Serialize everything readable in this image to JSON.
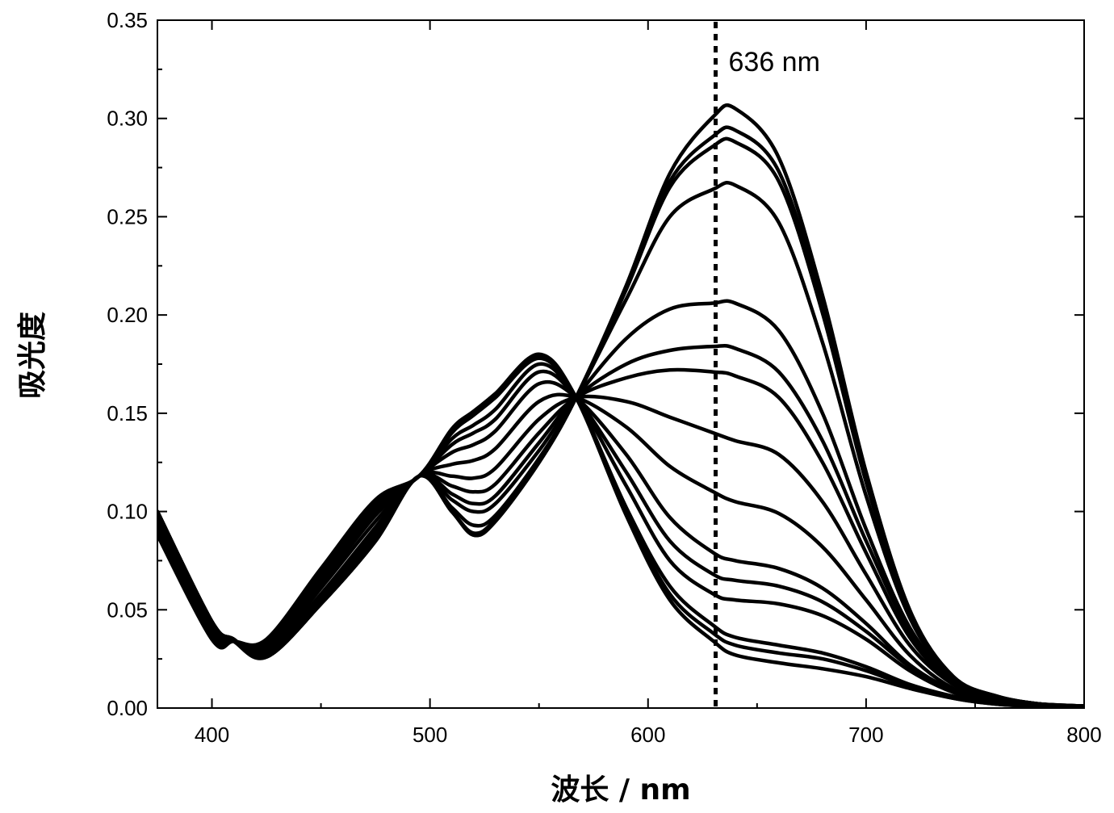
{
  "chart_data": {
    "type": "line",
    "title": "",
    "xlabel": "波长 / nm",
    "ylabel": "吸光度",
    "xlim": [
      375,
      800
    ],
    "ylim": [
      0,
      0.35
    ],
    "x_ticks": [
      400,
      500,
      600,
      700,
      800
    ],
    "x_tick_labels": [
      "400",
      "500",
      "600",
      "700",
      "800"
    ],
    "y_ticks": [
      0,
      0.05,
      0.1,
      0.15,
      0.2,
      0.25,
      0.3,
      0.35
    ],
    "y_tick_labels": [
      "0.00",
      "0.05",
      "0.10",
      "0.15",
      "0.20",
      "0.25",
      "0.30",
      "0.35"
    ],
    "grid": false,
    "legend": "none",
    "line_color": "#000000",
    "annotation": {
      "x": 631,
      "label": "636 nm",
      "style": "dotted vertical line"
    },
    "x": [
      375,
      400,
      410,
      425,
      450,
      475,
      495,
      510,
      520,
      530,
      550,
      567,
      590,
      610,
      630,
      640,
      660,
      680,
      700,
      720,
      740,
      760,
      780,
      800
    ],
    "series": [
      {
        "values": [
          0.1,
          0.044,
          0.035,
          0.026,
          0.053,
          0.085,
          0.118,
          0.1,
          0.088,
          0.095,
          0.125,
          0.158,
          0.215,
          0.272,
          0.301,
          0.305,
          0.28,
          0.21,
          0.12,
          0.05,
          0.016,
          0.006,
          0.002,
          0.001
        ]
      },
      {
        "values": [
          0.1,
          0.044,
          0.035,
          0.026,
          0.053,
          0.085,
          0.118,
          0.1,
          0.088,
          0.095,
          0.125,
          0.158,
          0.214,
          0.268,
          0.291,
          0.294,
          0.273,
          0.205,
          0.117,
          0.049,
          0.016,
          0.006,
          0.002,
          0.001
        ]
      },
      {
        "values": [
          0.1,
          0.044,
          0.035,
          0.026,
          0.053,
          0.085,
          0.118,
          0.1,
          0.089,
          0.096,
          0.125,
          0.158,
          0.213,
          0.265,
          0.286,
          0.288,
          0.268,
          0.201,
          0.115,
          0.048,
          0.016,
          0.006,
          0.002,
          0.001
        ]
      },
      {
        "values": [
          0.1,
          0.044,
          0.035,
          0.026,
          0.053,
          0.085,
          0.118,
          0.102,
          0.093,
          0.098,
          0.127,
          0.158,
          0.208,
          0.25,
          0.264,
          0.266,
          0.247,
          0.186,
          0.108,
          0.046,
          0.015,
          0.006,
          0.002,
          0.001
        ]
      },
      {
        "values": [
          0.098,
          0.043,
          0.034,
          0.026,
          0.054,
          0.087,
          0.118,
          0.106,
          0.1,
          0.104,
          0.131,
          0.158,
          0.188,
          0.203,
          0.206,
          0.206,
          0.192,
          0.15,
          0.091,
          0.041,
          0.014,
          0.005,
          0.002,
          0.001
        ]
      },
      {
        "values": [
          0.097,
          0.043,
          0.034,
          0.027,
          0.055,
          0.088,
          0.118,
          0.109,
          0.104,
          0.108,
          0.135,
          0.158,
          0.175,
          0.182,
          0.184,
          0.183,
          0.171,
          0.136,
          0.085,
          0.039,
          0.014,
          0.005,
          0.002,
          0.001
        ]
      },
      {
        "values": [
          0.096,
          0.042,
          0.034,
          0.027,
          0.056,
          0.09,
          0.118,
          0.113,
          0.11,
          0.114,
          0.14,
          0.158,
          0.168,
          0.172,
          0.171,
          0.169,
          0.158,
          0.125,
          0.079,
          0.036,
          0.013,
          0.005,
          0.002,
          0.001
        ]
      },
      {
        "values": [
          0.095,
          0.041,
          0.034,
          0.028,
          0.058,
          0.092,
          0.118,
          0.118,
          0.117,
          0.122,
          0.147,
          0.158,
          0.156,
          0.148,
          0.14,
          0.136,
          0.129,
          0.105,
          0.068,
          0.032,
          0.012,
          0.004,
          0.002,
          0.001
        ]
      },
      {
        "values": [
          0.094,
          0.04,
          0.034,
          0.029,
          0.061,
          0.095,
          0.118,
          0.124,
          0.126,
          0.132,
          0.156,
          0.158,
          0.143,
          0.123,
          0.11,
          0.105,
          0.099,
          0.082,
          0.055,
          0.027,
          0.01,
          0.004,
          0.002,
          0.001
        ]
      },
      {
        "values": [
          0.093,
          0.039,
          0.034,
          0.03,
          0.063,
          0.098,
          0.118,
          0.13,
          0.134,
          0.141,
          0.165,
          0.158,
          0.129,
          0.097,
          0.079,
          0.075,
          0.071,
          0.061,
          0.043,
          0.022,
          0.009,
          0.003,
          0.001,
          0.001
        ]
      },
      {
        "values": [
          0.092,
          0.038,
          0.034,
          0.031,
          0.065,
          0.1,
          0.118,
          0.134,
          0.14,
          0.147,
          0.171,
          0.158,
          0.12,
          0.085,
          0.068,
          0.065,
          0.062,
          0.054,
          0.039,
          0.021,
          0.008,
          0.003,
          0.001,
          0.001
        ]
      },
      {
        "values": [
          0.091,
          0.037,
          0.034,
          0.032,
          0.067,
          0.102,
          0.118,
          0.137,
          0.144,
          0.152,
          0.175,
          0.158,
          0.113,
          0.075,
          0.058,
          0.055,
          0.053,
          0.047,
          0.035,
          0.019,
          0.008,
          0.003,
          0.001,
          0.001
        ]
      },
      {
        "values": [
          0.09,
          0.036,
          0.034,
          0.033,
          0.069,
          0.104,
          0.118,
          0.14,
          0.149,
          0.158,
          0.178,
          0.158,
          0.102,
          0.062,
          0.042,
          0.036,
          0.032,
          0.028,
          0.021,
          0.012,
          0.006,
          0.002,
          0.001,
          0.001
        ]
      },
      {
        "values": [
          0.089,
          0.035,
          0.034,
          0.034,
          0.07,
          0.105,
          0.118,
          0.141,
          0.15,
          0.159,
          0.179,
          0.158,
          0.1,
          0.058,
          0.038,
          0.032,
          0.028,
          0.025,
          0.019,
          0.011,
          0.005,
          0.002,
          0.001,
          0.001
        ]
      },
      {
        "values": [
          0.088,
          0.035,
          0.034,
          0.035,
          0.071,
          0.106,
          0.118,
          0.142,
          0.151,
          0.16,
          0.18,
          0.158,
          0.098,
          0.055,
          0.034,
          0.027,
          0.023,
          0.02,
          0.016,
          0.01,
          0.005,
          0.002,
          0.001,
          0.001
        ]
      }
    ]
  }
}
